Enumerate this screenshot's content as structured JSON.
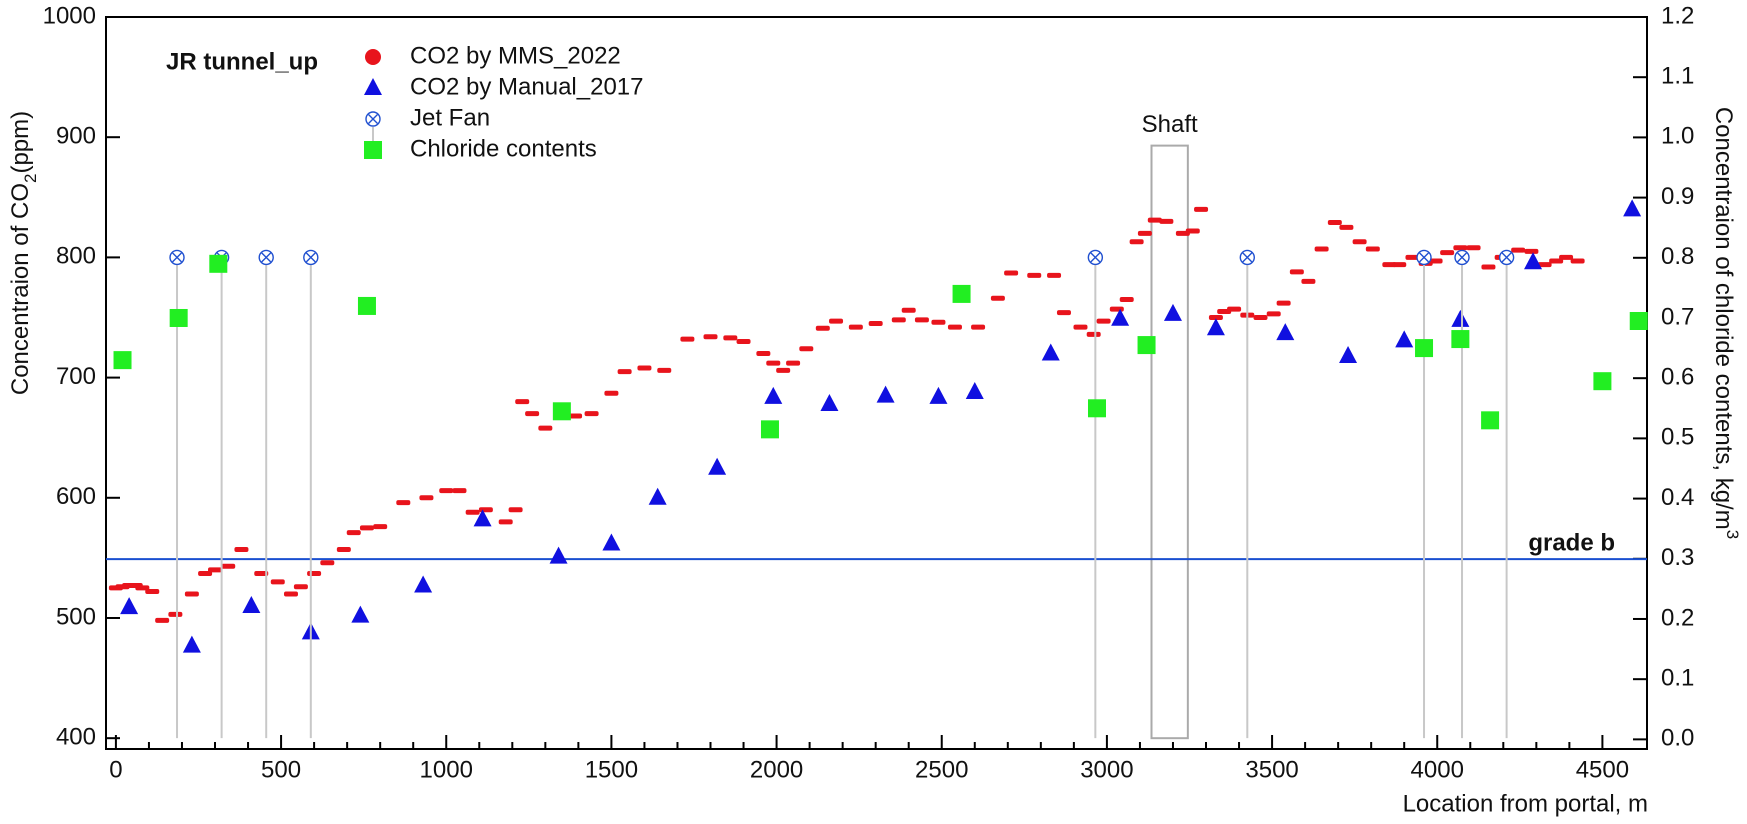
{
  "chart_data": {
    "type": "scatter",
    "title": "JR tunnel_up",
    "x_label": "Location from portal, m",
    "y_label": [
      "Concentraion of CO",
      "2",
      "(ppm)"
    ],
    "y2_label": [
      "Concentraion of chloride contents, kg/m",
      "3"
    ],
    "xlim": [
      -30,
      4635
    ],
    "ylim": [
      391,
      1000
    ],
    "y2lim": [
      -0.016,
      1.2
    ],
    "xticks": [
      0,
      500,
      1000,
      1500,
      2000,
      2500,
      3000,
      3500,
      4000,
      4500
    ],
    "yticks": [
      400,
      500,
      600,
      700,
      800,
      900,
      1000
    ],
    "y2ticks": [
      {
        "value": 0,
        "label": "0.0"
      },
      0.1,
      0.2,
      0.3,
      0.4,
      0.5,
      0.6,
      0.7,
      0.8,
      0.9,
      {
        "value": 1,
        "label": "1.0"
      },
      1.1,
      1.2
    ],
    "series": [
      {
        "name": "CO2 by MMS_2022",
        "color": "#e8141c",
        "marker": "circle",
        "x": [
          0,
          20,
          40,
          60,
          80,
          110,
          140,
          180,
          230,
          270,
          300,
          340,
          380,
          440,
          490,
          530,
          560,
          600,
          640,
          690,
          720,
          760,
          800,
          870,
          940,
          1000,
          1040,
          1080,
          1120,
          1180,
          1210,
          1230,
          1260,
          1300,
          1350,
          1390,
          1440,
          1500,
          1540,
          1600,
          1660,
          1730,
          1800,
          1860,
          1900,
          1960,
          1990,
          2020,
          2050,
          2090,
          2140,
          2180,
          2240,
          2300,
          2370,
          2400,
          2440,
          2490,
          2540,
          2610,
          2670,
          2710,
          2780,
          2840,
          2870,
          2920,
          2960,
          2990,
          3030,
          3060,
          3090,
          3115,
          3145,
          3180,
          3230,
          3260,
          3285,
          3330,
          3355,
          3385,
          3425,
          3465,
          3505,
          3535,
          3575,
          3610,
          3650,
          3690,
          3725,
          3765,
          3805,
          3855,
          3885,
          3925,
          3965,
          3995,
          4030,
          4070,
          4110,
          4155,
          4195,
          4245,
          4285,
          4325,
          4360,
          4390,
          4425
        ],
        "values": [
          525,
          526,
          527,
          527,
          525,
          522,
          498,
          503,
          520,
          537,
          540,
          543,
          557,
          537,
          530,
          520,
          526,
          537,
          546,
          557,
          571,
          575,
          576,
          596,
          600,
          606,
          606,
          588,
          590,
          580,
          590,
          680,
          670,
          658,
          673,
          668,
          670,
          687,
          705,
          708,
          706,
          732,
          734,
          733,
          730,
          720,
          712,
          706,
          712,
          724,
          741,
          747,
          742,
          745,
          748,
          756,
          748,
          746,
          742,
          742,
          766,
          787,
          785,
          785,
          754,
          742,
          736,
          747,
          757,
          765,
          813,
          820,
          831,
          830,
          820,
          822,
          840,
          750,
          755,
          757,
          752,
          750,
          753,
          762,
          788,
          780,
          807,
          829,
          825,
          813,
          807,
          794,
          794,
          800,
          795,
          797,
          804,
          808,
          808,
          792,
          800,
          806,
          805,
          794,
          797,
          800,
          797
        ]
      },
      {
        "name": "CO2 by Manual_2017",
        "color": "#1010e0",
        "marker": "triangle",
        "x": [
          40,
          230,
          410,
          590,
          740,
          930,
          1110,
          1340,
          1500,
          1640,
          1820,
          1990,
          2160,
          2330,
          2490,
          2600,
          2830,
          3040,
          3200,
          3330,
          3540,
          3730,
          3900,
          4070,
          4290,
          4590
        ],
        "values": [
          509,
          477,
          510,
          488,
          502,
          527,
          582,
          551,
          562,
          600,
          625,
          684,
          678,
          685,
          684,
          688,
          720,
          749,
          753,
          741,
          737,
          718,
          731,
          748,
          796,
          840
        ]
      },
      {
        "name": "Jet Fan",
        "color": "#2050d0",
        "marker": "jetfan",
        "x": [
          185,
          320,
          455,
          590,
          2965,
          3425,
          3960,
          4075,
          4210
        ],
        "values": [
          800,
          800,
          800,
          800,
          800,
          800,
          800,
          800,
          800
        ]
      },
      {
        "name": "Chloride contents",
        "color": "#22ee22",
        "marker": "square",
        "axis": "y2",
        "x": [
          20,
          190,
          310,
          760,
          1350,
          1980,
          2560,
          2970,
          3120,
          3960,
          4070,
          4160,
          4500,
          4610
        ],
        "values": [
          0.63,
          0.7,
          0.79,
          0.72,
          0.545,
          0.515,
          0.74,
          0.55,
          0.655,
          0.65,
          0.665,
          0.53,
          0.595,
          0.695
        ]
      }
    ],
    "reference_line": {
      "label": "grade b",
      "value": 549,
      "color": "#1a4fd0"
    },
    "shaft": {
      "label": "Shaft",
      "x": [
        3135,
        3245
      ],
      "top": 893
    }
  }
}
